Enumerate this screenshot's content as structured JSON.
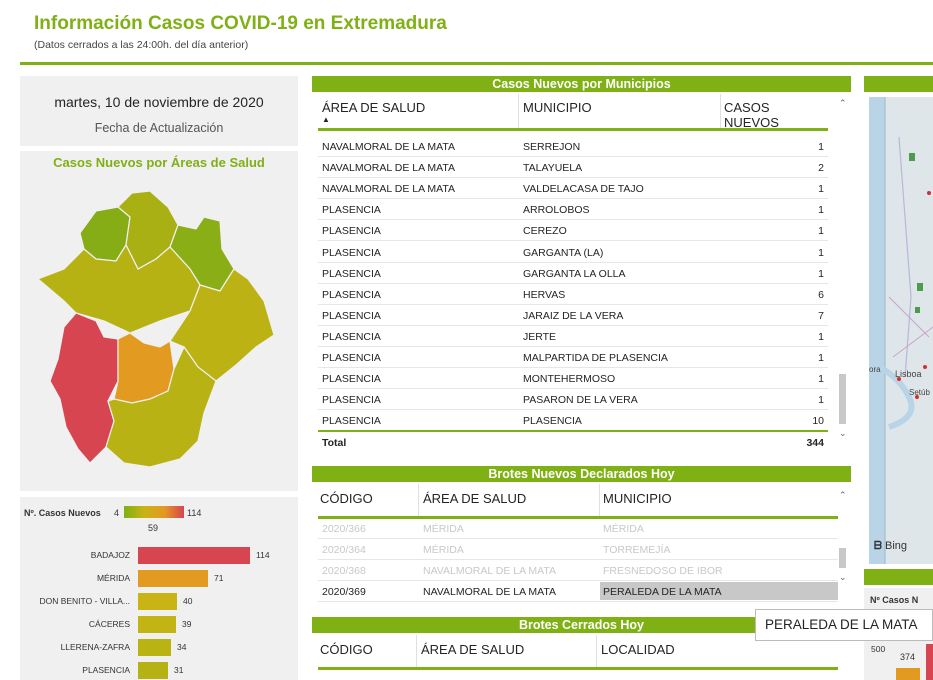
{
  "header": {
    "title": "Información Casos COVID-19 en Extremadura",
    "subtitle": "(Datos cerrados a las 24:00h. del día anterior)"
  },
  "update_card": {
    "date": "martes, 10 de noviembre de 2020",
    "label": "Fecha de Actualización"
  },
  "area_map": {
    "title": "Casos Nuevos por Áreas de Salud"
  },
  "area_bars": {
    "legend_label": "Nº. Casos Nuevos",
    "legend_min": "4",
    "legend_mid": "59",
    "legend_max": "114",
    "bars": [
      {
        "label": "BADAJOZ",
        "value": 114,
        "color": "#d64550"
      },
      {
        "label": "MÉRIDA",
        "value": 71,
        "color": "#e39a21"
      },
      {
        "label": "DON BENITO - VILLA...",
        "value": 40,
        "color": "#c8b414"
      },
      {
        "label": "CÁCERES",
        "value": 39,
        "color": "#c2b414"
      },
      {
        "label": "LLERENA-ZAFRA",
        "value": 34,
        "color": "#bab314"
      },
      {
        "label": "PLASENCIA",
        "value": 31,
        "color": "#b6b214"
      }
    ]
  },
  "municipios": {
    "title": "Casos Nuevos por Municipios",
    "columns": [
      "ÁREA DE SALUD",
      "MUNICIPIO",
      "CASOS NUEVOS"
    ],
    "rows": [
      [
        "NAVALMORAL DE LA MATA",
        "SERREJON",
        "1"
      ],
      [
        "NAVALMORAL DE LA MATA",
        "TALAYUELA",
        "2"
      ],
      [
        "NAVALMORAL DE LA MATA",
        "VALDELACASA DE TAJO",
        "1"
      ],
      [
        "PLASENCIA",
        "ARROLOBOS",
        "1"
      ],
      [
        "PLASENCIA",
        "CEREZO",
        "1"
      ],
      [
        "PLASENCIA",
        "GARGANTA (LA)",
        "1"
      ],
      [
        "PLASENCIA",
        "GARGANTA LA OLLA",
        "1"
      ],
      [
        "PLASENCIA",
        "HERVAS",
        "6"
      ],
      [
        "PLASENCIA",
        "JARAIZ DE LA VERA",
        "7"
      ],
      [
        "PLASENCIA",
        "JERTE",
        "1"
      ],
      [
        "PLASENCIA",
        "MALPARTIDA DE PLASENCIA",
        "1"
      ],
      [
        "PLASENCIA",
        "MONTEHERMOSO",
        "1"
      ],
      [
        "PLASENCIA",
        "PASARON DE LA VERA",
        "1"
      ],
      [
        "PLASENCIA",
        "PLASENCIA",
        "10"
      ]
    ],
    "total_label": "Total",
    "total_value": "344"
  },
  "brotes_nuevos": {
    "title": "Brotes Nuevos Declarados Hoy",
    "columns": [
      "CÓDIGO",
      "ÁREA DE SALUD",
      "MUNICIPIO"
    ],
    "rows": [
      [
        "2020/366",
        "MÉRIDA",
        "MÉRIDA"
      ],
      [
        "2020/364",
        "MÉRIDA",
        "TORREMEJÍA"
      ],
      [
        "2020/368",
        "NAVALMORAL DE LA MATA",
        "FRESNEDOSO DE IBOR"
      ],
      [
        "2020/369",
        "NAVALMORAL DE LA MATA",
        "PERALEDA DE LA MATA"
      ]
    ]
  },
  "brotes_cerrados": {
    "title": "Brotes Cerrados Hoy",
    "columns": [
      "CÓDIGO",
      "ÁREA DE SALUD",
      "LOCALIDAD"
    ]
  },
  "right_map": {
    "city_label": "Lisboa",
    "city_label_2": "Setúb",
    "city_label_3": "ora",
    "provider": "Bing"
  },
  "right_legend": {
    "label": "Nº Casos N",
    "axis_value": "500",
    "bar_value": "374"
  },
  "tooltip": {
    "text": "PERALEDA DE LA MATA"
  },
  "colors": {
    "accent": "#7fb014",
    "high": "#d64550",
    "mid": "#e39a21"
  }
}
